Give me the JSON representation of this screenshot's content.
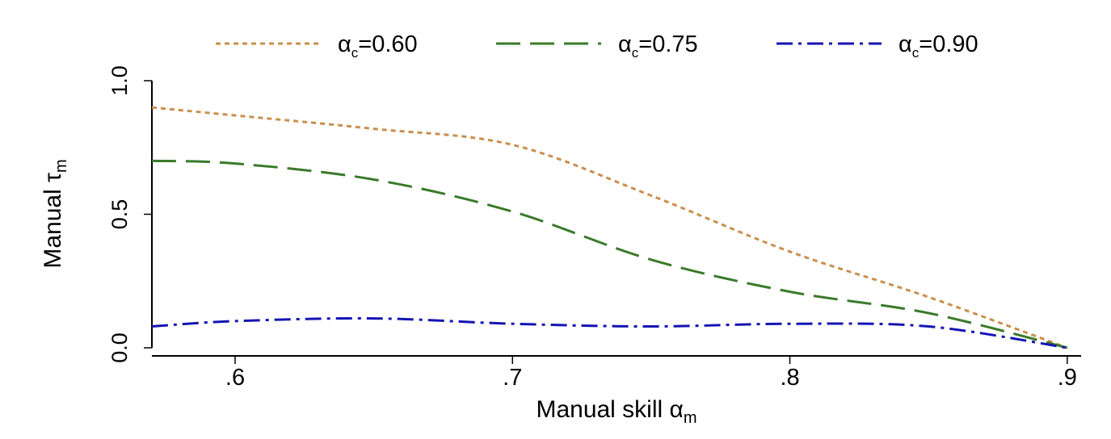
{
  "chart_data": {
    "type": "line",
    "xlabel": "Manual skill α",
    "xlabel_sub": "m",
    "ylabel": "Manual τ",
    "ylabel_sub": "m",
    "xlim": [
      0.57,
      0.905
    ],
    "ylim": [
      0,
      1.0
    ],
    "x_ticks": [
      0.6,
      0.7,
      0.8,
      0.9
    ],
    "x_tick_labels": [
      ".6",
      ".7",
      ".8",
      ".9"
    ],
    "y_ticks": [
      0,
      0.5,
      1.0
    ],
    "y_tick_labels": [
      "0.0",
      "0.5",
      "1.0"
    ],
    "legend_position": "top",
    "x": [
      0.57,
      0.6,
      0.65,
      0.7,
      0.75,
      0.8,
      0.85,
      0.9
    ],
    "series": [
      {
        "name": "α_c=0.60",
        "legend_main": "α",
        "legend_sub": "c",
        "legend_value": "=0.60",
        "color": "#c98f4e",
        "dash": "dotted",
        "values": [
          0.9,
          0.87,
          0.82,
          0.76,
          0.57,
          0.36,
          0.19,
          0.0
        ]
      },
      {
        "name": "α_c=0.75",
        "legend_main": "α",
        "legend_sub": "c",
        "legend_value": "=0.75",
        "color": "#3a7a2a",
        "dash": "long-dash",
        "values": [
          0.7,
          0.69,
          0.63,
          0.51,
          0.33,
          0.21,
          0.13,
          0.0
        ]
      },
      {
        "name": "α_c=0.90",
        "legend_main": "α",
        "legend_sub": "c",
        "legend_value": "=0.90",
        "color": "#1414b4",
        "dash": "dash-dot",
        "values": [
          0.08,
          0.1,
          0.11,
          0.09,
          0.08,
          0.09,
          0.08,
          0.0
        ]
      }
    ]
  }
}
